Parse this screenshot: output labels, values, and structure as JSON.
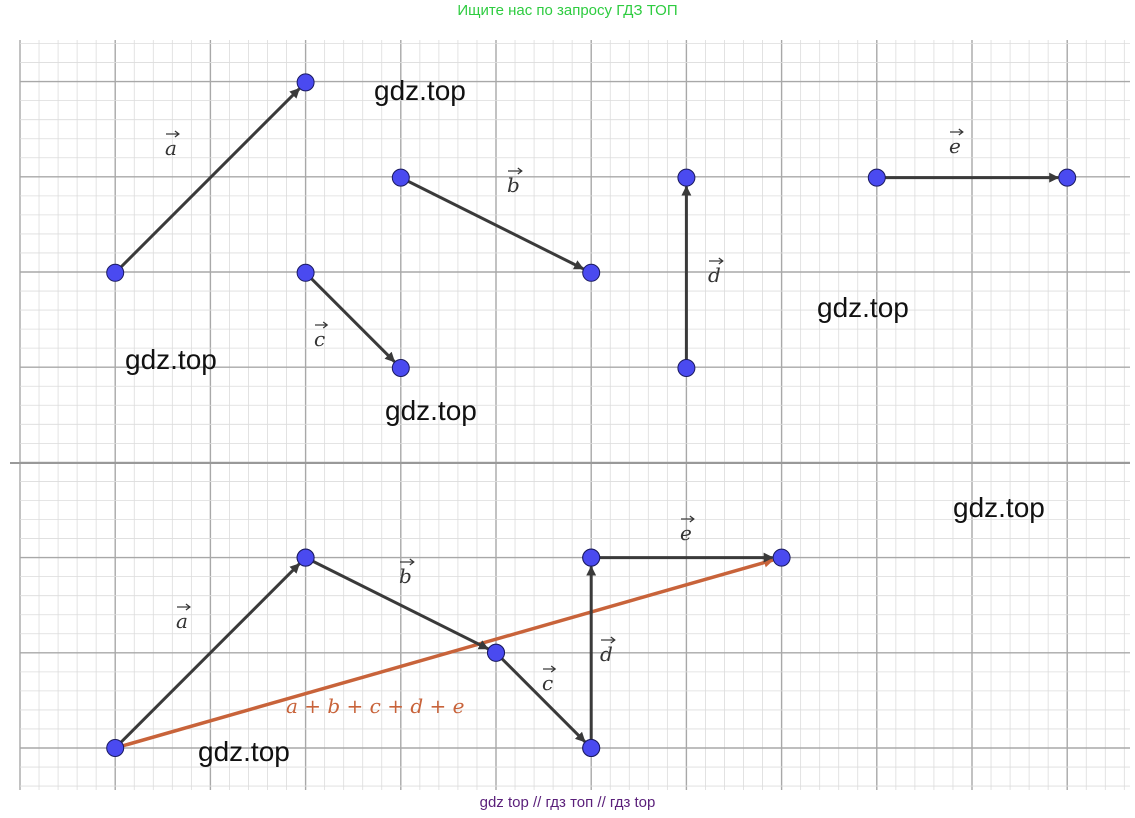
{
  "header": {
    "banner": "Ищите нас по запросу ГДЗ ТОП"
  },
  "footer": {
    "credit": "gdz top  //  гдз топ  //  гдз top"
  },
  "watermarks": [
    "gdz.top",
    "gdz.top",
    "gdz.top",
    "gdz.top",
    "gdz.top",
    "gdz.top"
  ],
  "labels": {
    "a": "a",
    "b": "b",
    "c": "c",
    "d": "d",
    "e": "e",
    "sum": "a + b + c + d + e"
  },
  "colors": {
    "vector": "#3a3a3a",
    "point": "#4a4af0",
    "sum": "#c8633a",
    "grid_major": "#a8a8a8",
    "grid_minor": "#dcdcdc"
  },
  "vectors_top": [
    {
      "name": "a",
      "from": [
        1,
        5
      ],
      "to": [
        3,
        7
      ]
    },
    {
      "name": "b",
      "from": [
        4,
        6
      ],
      "to": [
        6,
        5
      ]
    },
    {
      "name": "c",
      "from": [
        3,
        5
      ],
      "to": [
        4,
        4
      ]
    },
    {
      "name": "d",
      "from": [
        7,
        4
      ],
      "to": [
        7,
        6
      ]
    },
    {
      "name": "e",
      "from": [
        9,
        6
      ],
      "to": [
        11,
        6
      ]
    }
  ],
  "vectors_bottom": [
    {
      "name": "a",
      "from": [
        1,
        0
      ],
      "to": [
        3,
        2
      ]
    },
    {
      "name": "b",
      "from": [
        3,
        2
      ],
      "to": [
        5,
        1
      ]
    },
    {
      "name": "c",
      "from": [
        5,
        1
      ],
      "to": [
        6,
        0
      ]
    },
    {
      "name": "d",
      "from": [
        6,
        0
      ],
      "to": [
        6,
        2
      ]
    },
    {
      "name": "e",
      "from": [
        6,
        2
      ],
      "to": [
        8,
        2
      ]
    }
  ],
  "sum_vector": {
    "from": [
      1,
      0
    ],
    "to": [
      8,
      2
    ]
  }
}
